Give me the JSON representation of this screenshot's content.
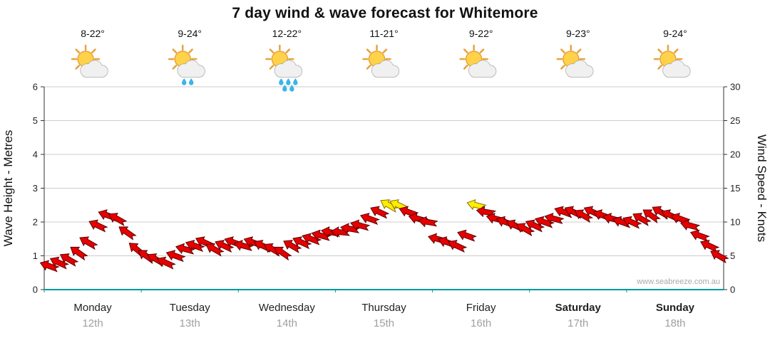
{
  "watermark": "www.seabreeze.com.au",
  "days": [
    {
      "name": "Monday",
      "date": "12th",
      "temps": "8-22°",
      "icon": "sun-cloud",
      "bold": false
    },
    {
      "name": "Tuesday",
      "date": "13th",
      "temps": "9-24°",
      "icon": "sun-cloud-drizzle",
      "bold": false
    },
    {
      "name": "Wednesday",
      "date": "14th",
      "temps": "12-22°",
      "icon": "sun-cloud-rain",
      "bold": false
    },
    {
      "name": "Thursday",
      "date": "15th",
      "temps": "11-21°",
      "icon": "sun-cloud",
      "bold": false
    },
    {
      "name": "Friday",
      "date": "16th",
      "temps": "9-22°",
      "icon": "sun-cloud",
      "bold": false
    },
    {
      "name": "Saturday",
      "date": "17th",
      "temps": "9-23°",
      "icon": "sun-cloud",
      "bold": true
    },
    {
      "name": "Sunday",
      "date": "18th",
      "temps": "9-24°",
      "icon": "sun-cloud",
      "bold": true
    }
  ],
  "chart_data": {
    "type": "scatter",
    "subtype": "wind-barb-forecast",
    "title": "7 day wind & wave forecast for Whitemore",
    "left_axis": {
      "label": "Wave Height - Metres",
      "range": [
        0,
        6
      ],
      "ticks": [
        0,
        1,
        2,
        3,
        4,
        5,
        6
      ]
    },
    "right_axis": {
      "label": "Wind Speed - Knots",
      "range": [
        0,
        30
      ],
      "ticks": [
        0,
        5,
        10,
        15,
        20,
        25,
        30
      ]
    },
    "x_categories": [
      "Monday",
      "Tuesday",
      "Wednesday",
      "Thursday",
      "Friday",
      "Saturday",
      "Sunday"
    ],
    "points_per_day": 10,
    "grid": true,
    "legend": false,
    "series": [
      {
        "name": "Wind speed",
        "units": "knots",
        "marker": "wind-arrow",
        "values": [
          3.5,
          4,
          4.5,
          5.5,
          7,
          9.5,
          11,
          10.5,
          8.5,
          6,
          5,
          4.5,
          4,
          5,
          6,
          6.5,
          7,
          6,
          6.5,
          7,
          6.5,
          7,
          6.5,
          6,
          5.5,
          6.5,
          7,
          7.5,
          8,
          8.5,
          8.5,
          9,
          9.5,
          10.5,
          11.5,
          12.5,
          12.5,
          11.5,
          10.5,
          10,
          7.5,
          7,
          6.5,
          8,
          12.5,
          11.5,
          10.5,
          10,
          9.5,
          9,
          9.5,
          10,
          10.5,
          11.5,
          11.5,
          11,
          11.5,
          11,
          10.5,
          10,
          10,
          10.5,
          11,
          11.5,
          11,
          10.5,
          9.5,
          8,
          6.5,
          5
        ],
        "directions_deg": [
          200,
          205,
          210,
          215,
          210,
          205,
          200,
          210,
          215,
          220,
          215,
          210,
          205,
          200,
          195,
          200,
          205,
          210,
          205,
          200,
          195,
          200,
          205,
          210,
          215,
          210,
          205,
          200,
          195,
          190,
          185,
          190,
          195,
          200,
          205,
          210,
          205,
          200,
          195,
          190,
          195,
          200,
          205,
          200,
          195,
          190,
          195,
          200,
          205,
          210,
          205,
          200,
          195,
          200,
          205,
          210,
          205,
          200,
          195,
          200,
          205,
          210,
          215,
          210,
          205,
          200,
          195,
          200,
          205,
          210
        ]
      }
    ],
    "colors": {
      "arrow": "#e60000",
      "arrow_outline": "#5c0000",
      "arrow_strong": "#ffec00",
      "arrow_strong_outline": "#8a7000",
      "strong_threshold_knots": 12,
      "grid": "#cccccc",
      "axis": "#333333",
      "baseline": "#009999",
      "day_label": "#222222",
      "date_label": "#a0a0a0"
    }
  }
}
